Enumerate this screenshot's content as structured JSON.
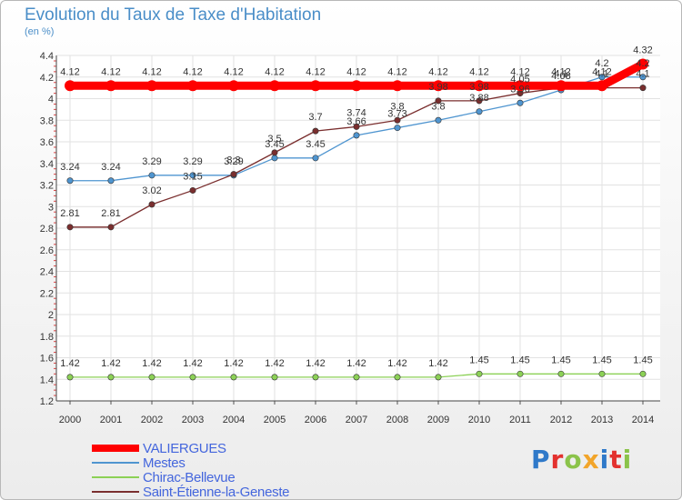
{
  "title": "Evolution du Taux de Taxe d'Habitation",
  "unit_label": "(en %)",
  "logo": {
    "text": "Proxiti",
    "colors": [
      "#2f79c9",
      "#e3312e",
      "#8bc34a",
      "#f2a52a",
      "#2f79c9",
      "#e3312e",
      "#8bc34a"
    ]
  },
  "chart_data": {
    "type": "line",
    "x": [
      "2000",
      "2001",
      "2002",
      "2003",
      "2004",
      "2005",
      "2006",
      "2007",
      "2008",
      "2009",
      "2010",
      "2011",
      "2012",
      "2013",
      "2014"
    ],
    "ylim": [
      1.2,
      4.4
    ],
    "yticks": [
      "1.2",
      "1.4",
      "1.6",
      "1.8",
      "2",
      "2.2",
      "2.4",
      "2.6",
      "2.8",
      "3",
      "3.2",
      "3.4",
      "3.6",
      "3.8",
      "4",
      "4.2",
      "4.4"
    ],
    "grid": true,
    "legend": "bottom-left",
    "series": [
      {
        "name": "VALIERGUES",
        "color": "#ff0000",
        "values": [
          4.12,
          4.12,
          4.12,
          4.12,
          4.12,
          4.12,
          4.12,
          4.12,
          4.12,
          4.12,
          4.12,
          4.12,
          4.12,
          4.12,
          4.32
        ],
        "labels": [
          "4.12",
          "4.12",
          "4.12",
          "4.12",
          "4.12",
          "4.12",
          "4.12",
          "4.12",
          "4.12",
          "4.12",
          "4.12",
          "4.12",
          "4.12",
          "4.12",
          "4.32"
        ]
      },
      {
        "name": "Mestes",
        "color": "#4f95d0",
        "values": [
          3.24,
          3.24,
          3.29,
          3.29,
          3.29,
          3.45,
          3.45,
          3.66,
          3.73,
          3.8,
          3.88,
          3.96,
          4.08,
          4.2,
          4.2
        ],
        "labels": [
          "3.24",
          "3.24",
          "3.29",
          "3.29",
          "3.29",
          "3.45",
          "3.45",
          "3.66",
          "3.73",
          "3.8",
          "3.88",
          "3.96",
          "4.08",
          "4.2",
          "4.2"
        ]
      },
      {
        "name": "Chirac-Bellevue",
        "color": "#8cd156",
        "values": [
          1.42,
          1.42,
          1.42,
          1.42,
          1.42,
          1.42,
          1.42,
          1.42,
          1.42,
          1.42,
          1.45,
          1.45,
          1.45,
          1.45,
          1.45
        ],
        "labels": [
          "1.42",
          "1.42",
          "1.42",
          "1.42",
          "1.42",
          "1.42",
          "1.42",
          "1.42",
          "1.42",
          "1.42",
          "1.45",
          "1.45",
          "1.45",
          "1.45",
          "1.45"
        ]
      },
      {
        "name": "Saint-Étienne-la-Geneste",
        "color": "#7a2e2e",
        "values": [
          2.81,
          2.81,
          3.02,
          3.15,
          3.3,
          3.5,
          3.7,
          3.74,
          3.8,
          3.98,
          3.98,
          4.05,
          4.1,
          4.1,
          4.1
        ],
        "labels": [
          "2.81",
          "2.81",
          "3.02",
          "3.15",
          "3.3",
          "3.5",
          "3.7",
          "3.74",
          "3.8",
          "3.98",
          "3.98",
          "4.05",
          "4.1",
          "4.1",
          "4.1"
        ]
      }
    ]
  }
}
